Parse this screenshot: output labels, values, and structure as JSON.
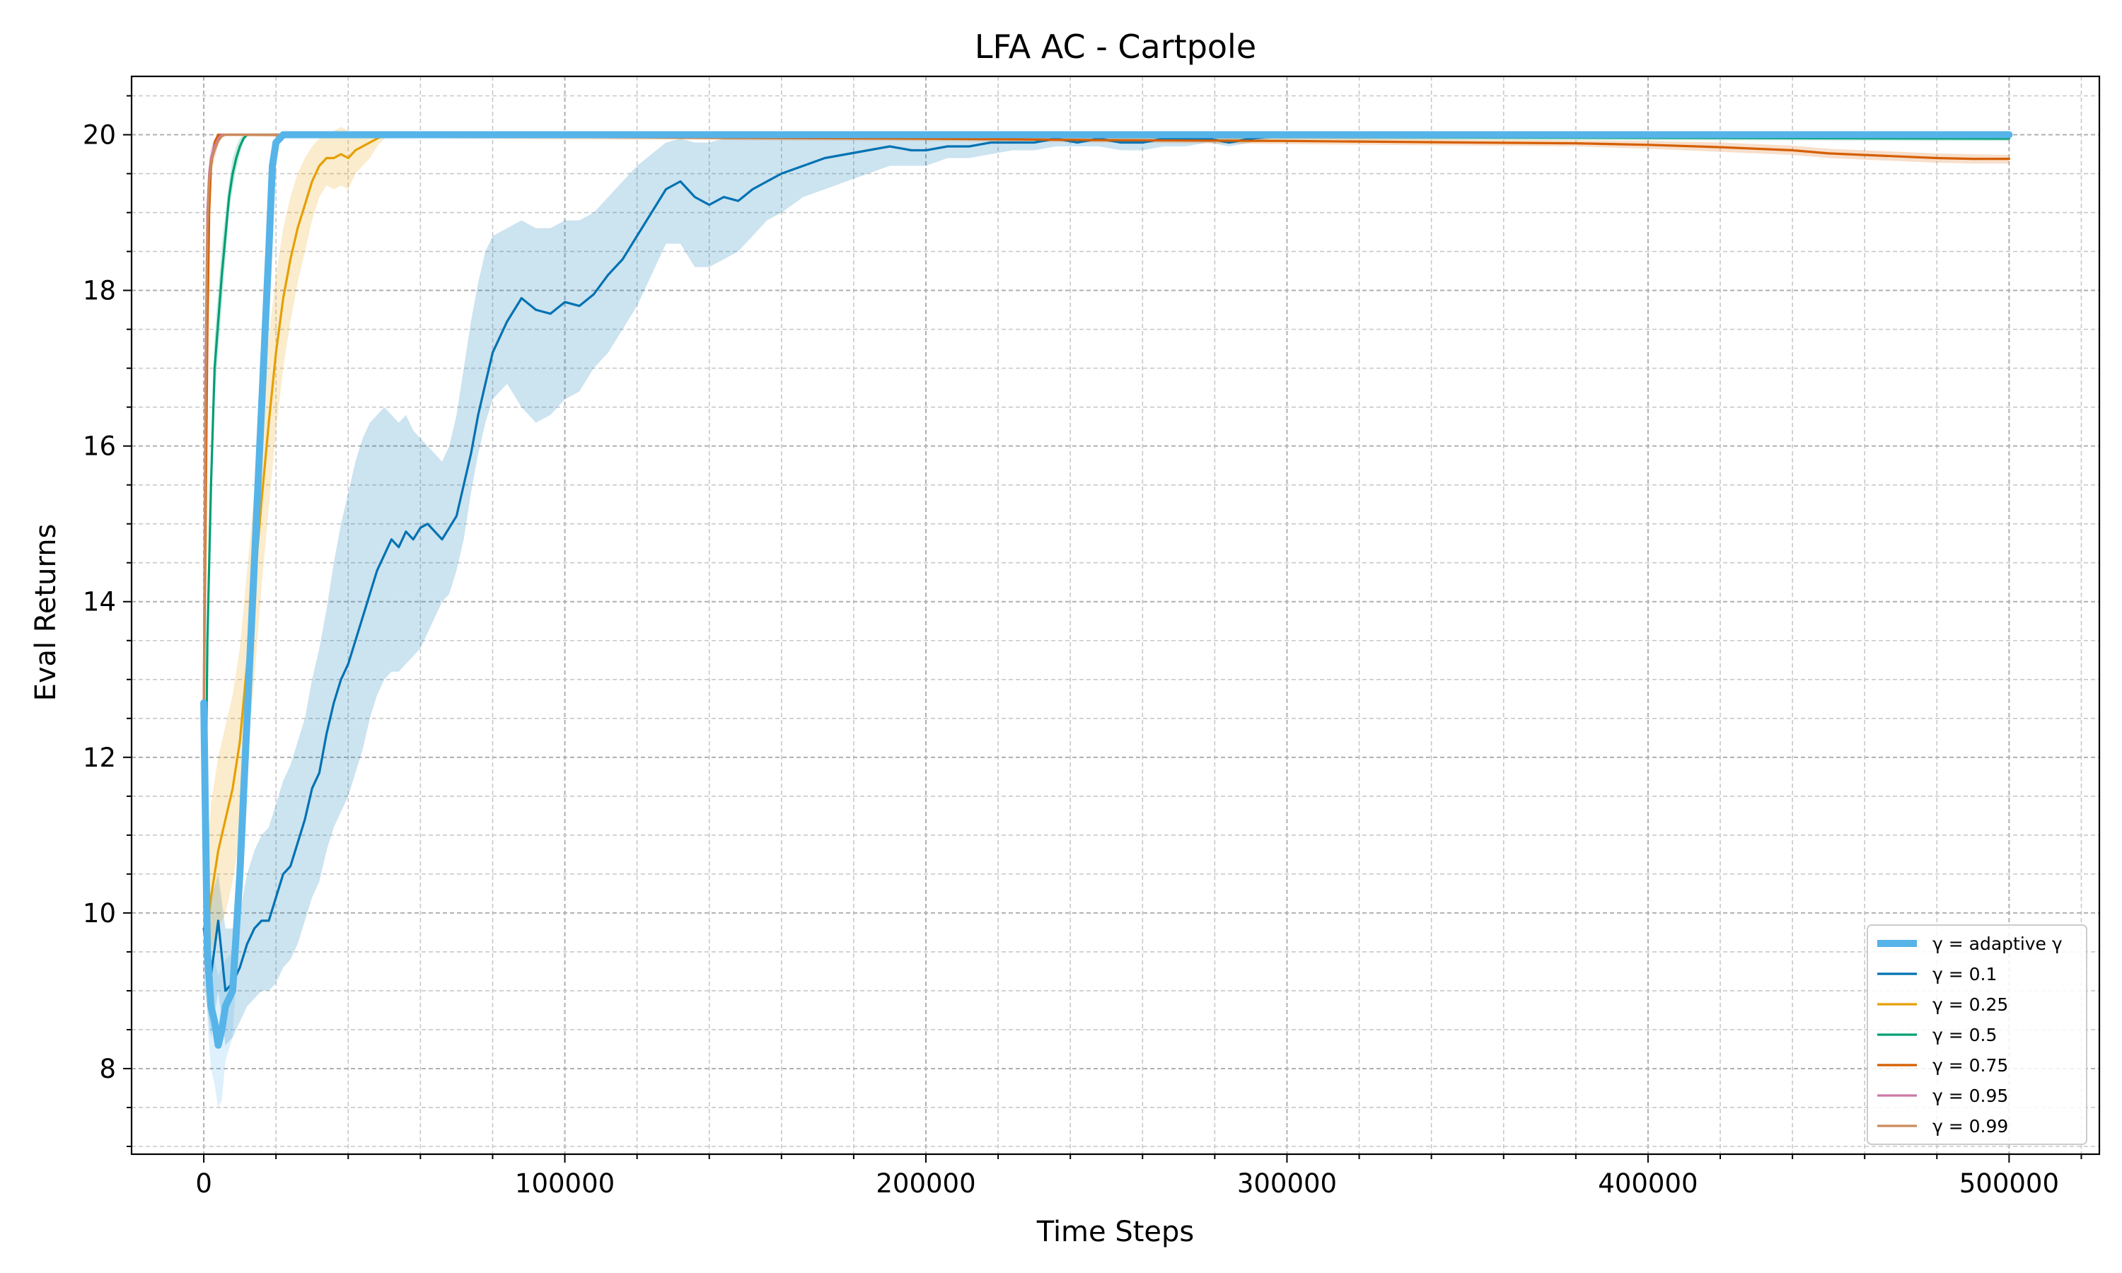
{
  "chart_data": {
    "type": "line",
    "title": "LFA AC - Cartpole",
    "xlabel": "Time Steps",
    "ylabel": "Eval Returns",
    "xlim": [
      -20000,
      525000
    ],
    "ylim": [
      6.9,
      20.75
    ],
    "xticks": [
      0,
      100000,
      200000,
      300000,
      400000,
      500000
    ],
    "xtick_labels": [
      "0",
      "100000",
      "200000",
      "300000",
      "400000",
      "500000"
    ],
    "yticks": [
      8,
      10,
      12,
      14,
      16,
      18,
      20
    ],
    "ytick_labels": [
      "8",
      "10",
      "12",
      "14",
      "16",
      "18",
      "20"
    ],
    "grid": true,
    "legend_position": "lower-right",
    "series": [
      {
        "name": "γ = adaptive γ",
        "color": "#56B4E9",
        "linewidth": "thick",
        "x": [
          0,
          1000,
          2000,
          3000,
          4000,
          5000,
          6000,
          8000,
          10000,
          12000,
          14000,
          16000,
          18000,
          19000,
          20000,
          22000,
          25000,
          30000,
          50000,
          100000,
          200000,
          300000,
          400000,
          500000
        ],
        "y": [
          12.7,
          9.5,
          8.8,
          8.6,
          8.3,
          8.5,
          8.8,
          9.0,
          10.5,
          12.5,
          14.5,
          16.5,
          18.5,
          19.6,
          19.9,
          20.0,
          20.0,
          20.0,
          20.0,
          20.0,
          20.0,
          20.0,
          20.0,
          20.0
        ],
        "band_upper": [
          12.8,
          10.2,
          9.5,
          9.4,
          9.2,
          9.3,
          9.4,
          9.5,
          11.0,
          13.0,
          15.0,
          17.0,
          18.9,
          19.8,
          20.0,
          20.0,
          20.0,
          20.0,
          20.0,
          20.0,
          20.0,
          20.0,
          20.0,
          20.0
        ],
        "band_lower": [
          12.6,
          8.6,
          8.0,
          7.8,
          7.5,
          7.6,
          8.1,
          8.4,
          10.0,
          12.0,
          14.0,
          16.0,
          18.1,
          19.3,
          19.8,
          20.0,
          20.0,
          20.0,
          20.0,
          20.0,
          20.0,
          20.0,
          20.0,
          20.0
        ]
      },
      {
        "name": "γ = 0.1",
        "color": "#0072B2",
        "linewidth": "normal",
        "x": [
          0,
          2000,
          4000,
          6000,
          8000,
          10000,
          12000,
          14000,
          16000,
          18000,
          20000,
          22000,
          24000,
          26000,
          28000,
          30000,
          32000,
          34000,
          36000,
          38000,
          40000,
          42000,
          44000,
          46000,
          48000,
          50000,
          52000,
          54000,
          56000,
          58000,
          60000,
          62000,
          64000,
          66000,
          68000,
          70000,
          72000,
          74000,
          76000,
          78000,
          80000,
          84000,
          88000,
          92000,
          96000,
          100000,
          104000,
          108000,
          112000,
          116000,
          120000,
          124000,
          128000,
          132000,
          136000,
          140000,
          144000,
          148000,
          152000,
          156000,
          160000,
          166000,
          172000,
          178000,
          184000,
          190000,
          196000,
          200000,
          206000,
          212000,
          218000,
          224000,
          230000,
          236000,
          242000,
          248000,
          254000,
          260000,
          266000,
          272000,
          278000,
          284000,
          290000,
          300000,
          350000,
          400000,
          450000,
          500000
        ],
        "y": [
          9.8,
          9.2,
          9.9,
          9.0,
          9.1,
          9.3,
          9.6,
          9.8,
          9.9,
          9.9,
          10.2,
          10.5,
          10.6,
          10.9,
          11.2,
          11.6,
          11.8,
          12.3,
          12.7,
          13.0,
          13.2,
          13.5,
          13.8,
          14.1,
          14.4,
          14.6,
          14.8,
          14.7,
          14.9,
          14.8,
          14.95,
          15.0,
          14.9,
          14.8,
          14.95,
          15.1,
          15.5,
          15.9,
          16.4,
          16.8,
          17.2,
          17.6,
          17.9,
          17.75,
          17.7,
          17.85,
          17.8,
          17.95,
          18.2,
          18.4,
          18.7,
          19.0,
          19.3,
          19.4,
          19.2,
          19.1,
          19.2,
          19.15,
          19.3,
          19.4,
          19.5,
          19.6,
          19.7,
          19.75,
          19.8,
          19.85,
          19.8,
          19.8,
          19.85,
          19.85,
          19.9,
          19.9,
          19.9,
          19.95,
          19.9,
          19.95,
          19.9,
          19.9,
          19.95,
          19.95,
          19.95,
          19.9,
          19.95,
          20.0,
          20.0,
          20.0,
          20.0,
          20.0
        ],
        "band_upper": [
          10.5,
          10.2,
          10.5,
          9.8,
          9.8,
          10.0,
          10.5,
          10.8,
          11.0,
          11.1,
          11.4,
          11.7,
          11.9,
          12.2,
          12.5,
          13.0,
          13.4,
          13.9,
          14.5,
          15.0,
          15.4,
          15.8,
          16.1,
          16.3,
          16.4,
          16.5,
          16.4,
          16.3,
          16.4,
          16.2,
          16.1,
          16.0,
          15.9,
          15.8,
          16.0,
          16.4,
          17.0,
          17.6,
          18.1,
          18.5,
          18.7,
          18.8,
          18.9,
          18.8,
          18.8,
          18.9,
          18.9,
          19.0,
          19.2,
          19.4,
          19.6,
          19.75,
          19.9,
          19.95,
          19.9,
          19.9,
          19.95,
          19.95,
          19.97,
          19.97,
          19.98,
          19.98,
          20.0,
          20.0,
          20.0,
          20.0,
          20.0,
          20.0,
          20.0,
          20.0,
          20.0,
          20.0,
          20.0,
          20.0,
          20.0,
          20.0,
          20.0,
          20.0,
          20.0,
          20.0,
          20.0,
          20.0,
          20.0,
          20.0,
          20.0,
          20.0,
          20.0,
          20.0
        ],
        "band_lower": [
          9.1,
          8.4,
          9.0,
          8.3,
          8.4,
          8.6,
          8.8,
          8.9,
          9.0,
          9.0,
          9.1,
          9.3,
          9.4,
          9.6,
          9.9,
          10.2,
          10.4,
          10.8,
          11.1,
          11.3,
          11.5,
          11.8,
          12.1,
          12.5,
          12.8,
          13.0,
          13.1,
          13.1,
          13.2,
          13.3,
          13.4,
          13.6,
          13.8,
          14.0,
          14.1,
          14.4,
          14.8,
          15.4,
          15.9,
          16.3,
          16.6,
          16.8,
          16.5,
          16.3,
          16.4,
          16.6,
          16.7,
          17.0,
          17.2,
          17.5,
          17.8,
          18.2,
          18.6,
          18.6,
          18.3,
          18.3,
          18.4,
          18.5,
          18.7,
          18.9,
          19.0,
          19.2,
          19.3,
          19.4,
          19.5,
          19.6,
          19.6,
          19.6,
          19.7,
          19.7,
          19.75,
          19.8,
          19.8,
          19.85,
          19.85,
          19.85,
          19.8,
          19.8,
          19.85,
          19.85,
          19.9,
          19.85,
          19.9,
          20.0,
          20.0,
          20.0,
          20.0,
          20.0
        ]
      },
      {
        "name": "γ = 0.25",
        "color": "#E69F00",
        "linewidth": "normal",
        "x": [
          0,
          1000,
          2000,
          4000,
          6000,
          8000,
          10000,
          12000,
          14000,
          16000,
          18000,
          20000,
          22000,
          24000,
          26000,
          28000,
          30000,
          32000,
          34000,
          36000,
          38000,
          40000,
          42000,
          44000,
          46000,
          48000,
          50000,
          60000,
          100000,
          200000,
          300000,
          400000,
          500000
        ],
        "y": [
          12.6,
          9.8,
          10.2,
          10.8,
          11.2,
          11.6,
          12.2,
          13.2,
          14.2,
          15.3,
          16.3,
          17.2,
          17.9,
          18.4,
          18.8,
          19.1,
          19.4,
          19.6,
          19.7,
          19.7,
          19.75,
          19.7,
          19.8,
          19.85,
          19.9,
          19.95,
          20.0,
          20.0,
          20.0,
          20.0,
          20.0,
          20.0,
          20.0
        ],
        "band_upper": [
          12.7,
          10.8,
          11.4,
          12.0,
          12.4,
          12.8,
          13.4,
          14.4,
          15.4,
          16.4,
          17.4,
          18.2,
          18.8,
          19.2,
          19.5,
          19.7,
          19.85,
          19.95,
          20.0,
          20.05,
          20.1,
          20.05,
          20.0,
          20.0,
          20.0,
          20.0,
          20.0,
          20.0,
          20.0,
          20.0,
          20.0,
          20.0,
          20.0
        ],
        "band_lower": [
          12.5,
          9.4,
          9.5,
          9.8,
          10.0,
          10.4,
          11.0,
          12.0,
          13.0,
          14.2,
          15.2,
          16.2,
          17.0,
          17.6,
          18.1,
          18.5,
          18.9,
          19.2,
          19.35,
          19.3,
          19.35,
          19.3,
          19.5,
          19.6,
          19.7,
          19.85,
          19.95,
          20.0,
          20.0,
          20.0,
          20.0,
          20.0,
          20.0
        ]
      },
      {
        "name": "γ = 0.5",
        "color": "#009E73",
        "linewidth": "normal",
        "x": [
          0,
          500,
          1000,
          2000,
          3000,
          4000,
          5000,
          6000,
          7000,
          8000,
          9000,
          10000,
          11000,
          12000,
          14000,
          20000,
          100000,
          200000,
          300000,
          400000,
          500000
        ],
        "y": [
          12.5,
          11.2,
          13.5,
          15.5,
          17.0,
          17.6,
          18.2,
          18.7,
          19.2,
          19.5,
          19.7,
          19.85,
          19.95,
          20.0,
          20.0,
          20.0,
          19.99,
          19.98,
          19.97,
          19.96,
          19.95
        ],
        "band_upper": [
          12.6,
          11.5,
          13.9,
          15.9,
          17.4,
          18.0,
          18.6,
          19.0,
          19.4,
          19.7,
          19.85,
          19.95,
          20.0,
          20.0,
          20.0,
          20.0,
          20.0,
          20.0,
          20.0,
          19.99,
          19.98
        ],
        "band_lower": [
          12.4,
          10.9,
          13.1,
          15.1,
          16.6,
          17.2,
          17.8,
          18.4,
          19.0,
          19.3,
          19.55,
          19.75,
          19.9,
          20.0,
          20.0,
          20.0,
          19.98,
          19.96,
          19.94,
          19.93,
          19.92
        ]
      },
      {
        "name": "γ = 0.75",
        "color": "#D55E00",
        "linewidth": "normal",
        "x": [
          0,
          500,
          1000,
          1500,
          2000,
          3000,
          4000,
          6000,
          10000,
          50000,
          100000,
          150000,
          200000,
          250000,
          300000,
          350000,
          380000,
          400000,
          420000,
          440000,
          450000,
          460000,
          470000,
          480000,
          490000,
          500000
        ],
        "y": [
          12.5,
          15.0,
          17.5,
          19.0,
          19.6,
          19.9,
          20.0,
          20.0,
          20.0,
          19.98,
          19.97,
          19.96,
          19.95,
          19.93,
          19.92,
          19.9,
          19.89,
          19.87,
          19.84,
          19.8,
          19.76,
          19.74,
          19.72,
          19.7,
          19.69,
          19.69
        ],
        "band_upper": [
          12.6,
          15.3,
          17.8,
          19.2,
          19.75,
          19.95,
          20.0,
          20.0,
          20.0,
          20.0,
          20.0,
          19.99,
          19.98,
          19.97,
          19.96,
          19.94,
          19.93,
          19.92,
          19.9,
          19.86,
          19.82,
          19.8,
          19.78,
          19.76,
          19.75,
          19.74
        ],
        "band_lower": [
          12.4,
          14.7,
          17.2,
          18.8,
          19.45,
          19.85,
          19.98,
          20.0,
          19.99,
          19.96,
          19.94,
          19.93,
          19.92,
          19.9,
          19.88,
          19.86,
          19.85,
          19.82,
          19.78,
          19.74,
          19.7,
          19.68,
          19.66,
          19.64,
          19.63,
          19.63
        ]
      },
      {
        "name": "γ = 0.95",
        "color": "#CC79A7",
        "linewidth": "normal",
        "x": [
          0,
          500,
          1000,
          1500,
          2000,
          3000,
          4000,
          5000,
          6000,
          10000,
          100000,
          200000,
          300000,
          400000,
          500000
        ],
        "y": [
          12.5,
          17.0,
          19.0,
          19.5,
          19.7,
          19.85,
          19.95,
          20.0,
          20.0,
          20.0,
          20.0,
          20.0,
          20.0,
          20.0,
          20.0
        ],
        "band_upper": [
          12.6,
          17.3,
          19.2,
          19.65,
          19.85,
          19.95,
          20.0,
          20.0,
          20.0,
          20.0,
          20.0,
          20.0,
          20.0,
          20.0,
          20.0
        ],
        "band_lower": [
          12.4,
          16.7,
          18.8,
          19.35,
          19.55,
          19.75,
          19.9,
          19.98,
          20.0,
          20.0,
          20.0,
          20.0,
          20.0,
          20.0,
          20.0
        ]
      },
      {
        "name": "γ = 0.99",
        "color": "#CC8B5C",
        "linewidth": "normal",
        "x": [
          0,
          500,
          1000,
          1500,
          2000,
          3000,
          4000,
          5000,
          6000,
          10000,
          100000,
          200000,
          300000,
          400000,
          500000
        ],
        "y": [
          12.5,
          16.5,
          18.8,
          19.4,
          19.65,
          19.8,
          19.92,
          19.98,
          20.0,
          20.0,
          20.0,
          20.0,
          20.0,
          20.0,
          20.0
        ],
        "band_upper": [
          12.6,
          16.8,
          19.0,
          19.6,
          19.8,
          19.92,
          19.98,
          20.0,
          20.0,
          20.0,
          20.0,
          20.0,
          20.0,
          20.0,
          20.0
        ],
        "band_lower": [
          12.4,
          16.2,
          18.6,
          19.2,
          19.5,
          19.68,
          19.86,
          19.96,
          20.0,
          20.0,
          20.0,
          20.0,
          20.0,
          20.0,
          20.0
        ]
      }
    ]
  }
}
